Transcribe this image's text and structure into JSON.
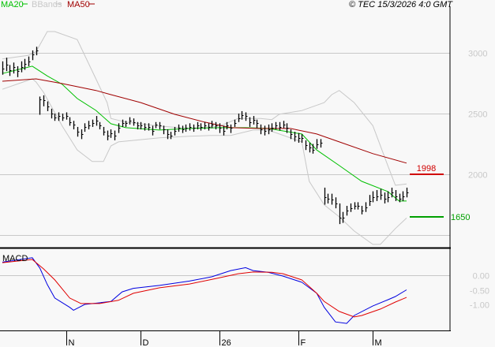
{
  "header": {
    "legend": [
      {
        "label": "MA20",
        "color": "#00c000"
      },
      {
        "label": "BBands",
        "color": "#c8c8c8"
      },
      {
        "label": "MA50",
        "color": "#a00000"
      }
    ],
    "copyright": "© TEC 15/3/2026 4:0 GMT"
  },
  "chart_data": [
    {
      "type": "ohlc",
      "panel": "price",
      "ylim": [
        1380,
        3300
      ],
      "yticks": [
        1500,
        2000,
        2500,
        3000
      ],
      "ytick_labels": [
        "",
        "2000",
        "2500",
        "3000"
      ],
      "grid": true,
      "dates": [
        "2025-10-09",
        "2025-10-10",
        "2025-10-13",
        "2025-10-14",
        "2025-10-15",
        "2025-10-16",
        "2025-10-17",
        "2025-10-20",
        "2025-10-21",
        "2025-10-22",
        "2025-10-23",
        "2025-10-24",
        "2025-10-27",
        "2025-10-28",
        "2025-10-29",
        "2025-10-30",
        "2025-10-31",
        "2025-11-03",
        "2025-11-04",
        "2025-11-05",
        "2025-11-06",
        "2025-11-07",
        "2025-11-10",
        "2025-11-11",
        "2025-11-12",
        "2025-11-13",
        "2025-11-14",
        "2025-11-17",
        "2025-11-18",
        "2025-11-19",
        "2025-11-20",
        "2025-11-21",
        "2025-11-24",
        "2025-11-25",
        "2025-11-26",
        "2025-11-27",
        "2025-11-28",
        "2025-12-01",
        "2025-12-02",
        "2025-12-03",
        "2025-12-04",
        "2025-12-05",
        "2025-12-08",
        "2025-12-09",
        "2025-12-10",
        "2025-12-11",
        "2025-12-12",
        "2025-12-15",
        "2025-12-16",
        "2025-12-17",
        "2025-12-18",
        "2025-12-19",
        "2025-12-22",
        "2025-12-23",
        "2025-12-24",
        "2025-12-29",
        "2025-12-30",
        "2025-12-31",
        "2026-01-02",
        "2026-01-05",
        "2026-01-06",
        "2026-01-07",
        "2026-01-08",
        "2026-01-09",
        "2026-01-12",
        "2026-01-13",
        "2026-01-14",
        "2026-01-15",
        "2026-01-16",
        "2026-01-19",
        "2026-01-20",
        "2026-01-21",
        "2026-01-22",
        "2026-01-23",
        "2026-01-26",
        "2026-01-27",
        "2026-01-28",
        "2026-01-29",
        "2026-01-30",
        "2026-02-02",
        "2026-02-03",
        "2026-02-04",
        "2026-02-05",
        "2026-02-06",
        "2026-02-09",
        "2026-02-10",
        "2026-02-11",
        "2026-02-12",
        "2026-02-13",
        "2026-02-16",
        "2026-02-17",
        "2026-02-18",
        "2026-02-19",
        "2026-02-20",
        "2026-02-23",
        "2026-02-24",
        "2026-02-25",
        "2026-02-26",
        "2026-02-27",
        "2026-03-02",
        "2026-03-03",
        "2026-03-04",
        "2026-03-05",
        "2026-03-06",
        "2026-03-09",
        "2026-03-10",
        "2026-03-11",
        "2026-03-12",
        "2026-03-13"
      ],
      "close": [
        2870,
        2900,
        2860,
        2880,
        2850,
        2880,
        2910,
        2930,
        2990,
        3020,
        2620,
        2610,
        2560,
        2500,
        2470,
        2480,
        2470,
        2480,
        2430,
        2410,
        2350,
        2330,
        2390,
        2400,
        2420,
        2440,
        2400,
        2350,
        2320,
        2340,
        2320,
        2380,
        2420,
        2420,
        2440,
        2430,
        2400,
        2400,
        2390,
        2390,
        2360,
        2410,
        2400,
        2370,
        2330,
        2320,
        2360,
        2380,
        2370,
        2380,
        2390,
        2380,
        2400,
        2390,
        2400,
        2390,
        2410,
        2400,
        2380,
        2360,
        2400,
        2380,
        2420,
        2460,
        2490,
        2480,
        2430,
        2450,
        2420,
        2370,
        2360,
        2370,
        2380,
        2400,
        2390,
        2410,
        2380,
        2330,
        2310,
        2300,
        2300,
        2240,
        2220,
        2200,
        2250,
        2260,
        1810,
        1800,
        1790,
        1760,
        1640,
        1640,
        1700,
        1720,
        1740,
        1740,
        1700,
        1730,
        1780,
        1810,
        1820,
        1830,
        1800,
        1810,
        1850,
        1820,
        1800,
        1820,
        1850
      ],
      "high": [
        2930,
        2960,
        2900,
        2920,
        2890,
        2930,
        2950,
        2970,
        3020,
        3050,
        2640,
        2650,
        2600,
        2540,
        2500,
        2510,
        2500,
        2510,
        2470,
        2440,
        2390,
        2370,
        2420,
        2440,
        2450,
        2480,
        2430,
        2390,
        2360,
        2370,
        2360,
        2420,
        2450,
        2440,
        2470,
        2460,
        2430,
        2430,
        2420,
        2420,
        2400,
        2430,
        2430,
        2400,
        2370,
        2350,
        2390,
        2410,
        2400,
        2410,
        2420,
        2410,
        2430,
        2420,
        2430,
        2420,
        2440,
        2430,
        2420,
        2400,
        2430,
        2410,
        2450,
        2500,
        2520,
        2510,
        2470,
        2480,
        2450,
        2410,
        2400,
        2410,
        2420,
        2430,
        2430,
        2440,
        2420,
        2370,
        2350,
        2340,
        2330,
        2280,
        2260,
        2250,
        2290,
        2290,
        1890,
        1840,
        1840,
        1810,
        1760,
        1690,
        1740,
        1760,
        1770,
        1770,
        1740,
        1770,
        1830,
        1860,
        1870,
        1880,
        1850,
        1860,
        1890,
        1870,
        1840,
        1860,
        1890
      ],
      "low": [
        2820,
        2850,
        2810,
        2830,
        2800,
        2840,
        2860,
        2890,
        2940,
        2980,
        2490,
        2560,
        2520,
        2460,
        2440,
        2440,
        2440,
        2450,
        2400,
        2370,
        2310,
        2290,
        2350,
        2370,
        2390,
        2400,
        2370,
        2320,
        2280,
        2300,
        2280,
        2340,
        2390,
        2390,
        2410,
        2400,
        2370,
        2370,
        2360,
        2360,
        2320,
        2380,
        2370,
        2330,
        2290,
        2290,
        2320,
        2350,
        2340,
        2350,
        2360,
        2350,
        2370,
        2360,
        2370,
        2360,
        2380,
        2370,
        2340,
        2320,
        2370,
        2340,
        2390,
        2430,
        2450,
        2440,
        2390,
        2410,
        2380,
        2330,
        2320,
        2330,
        2350,
        2370,
        2360,
        2380,
        2340,
        2290,
        2270,
        2260,
        2260,
        2200,
        2180,
        2170,
        2210,
        2220,
        1750,
        1760,
        1750,
        1720,
        1590,
        1600,
        1660,
        1690,
        1710,
        1710,
        1670,
        1690,
        1740,
        1770,
        1780,
        1790,
        1760,
        1770,
        1810,
        1780,
        1770,
        1780,
        1810
      ]
    },
    {
      "type": "line",
      "panel": "price",
      "series": [
        {
          "name": "MA20",
          "color": "#00c000",
          "points": [
            [
              "2025-10-09",
              2830
            ],
            [
              "2025-10-21",
              2890
            ],
            [
              "2025-10-27",
              2810
            ],
            [
              "2025-10-31",
              2740
            ],
            [
              "2025-11-06",
              2624
            ],
            [
              "2025-11-13",
              2526
            ],
            [
              "2025-11-19",
              2416
            ],
            [
              "2025-11-25",
              2384
            ],
            [
              "2025-12-08",
              2364
            ],
            [
              "2025-12-18",
              2377
            ],
            [
              "2026-01-02",
              2384
            ],
            [
              "2026-01-13",
              2384
            ],
            [
              "2026-01-21",
              2377
            ],
            [
              "2026-02-03",
              2332
            ],
            [
              "2026-02-09",
              2200
            ],
            [
              "2026-02-17",
              2072
            ],
            [
              "2026-02-25",
              1942
            ],
            [
              "2026-03-06",
              1858
            ],
            [
              "2026-03-11",
              1780
            ],
            [
              "2026-03-13",
              1780
            ]
          ]
        },
        {
          "name": "BBands",
          "color": "#c8c8c8",
          "points": [
            [
              "2025-10-09",
              2950
            ],
            [
              "2025-10-20",
              2980
            ],
            [
              "2025-10-22",
              3010
            ],
            [
              "2025-10-27",
              3175
            ],
            [
              "2025-10-29",
              3175
            ],
            [
              "2025-11-06",
              3110
            ],
            [
              "2025-11-13",
              2786
            ],
            [
              "2025-11-18",
              2590
            ],
            [
              "2025-11-19",
              2460
            ],
            [
              "2025-11-25",
              2430
            ],
            [
              "2025-12-08",
              2397
            ],
            [
              "2025-12-18",
              2377
            ],
            [
              "2026-01-02",
              2397
            ],
            [
              "2026-01-09",
              2460
            ],
            [
              "2026-01-19",
              2460
            ],
            [
              "2026-01-22",
              2450
            ],
            [
              "2026-01-26",
              2494
            ],
            [
              "2026-02-03",
              2525
            ],
            [
              "2026-02-11",
              2590
            ],
            [
              "2026-02-13",
              2656
            ],
            [
              "2026-02-17",
              2690
            ],
            [
              "2026-02-23",
              2590
            ],
            [
              "2026-03-02",
              2400
            ],
            [
              "2026-03-06",
              2070
            ],
            [
              "2026-03-10",
              1910
            ],
            [
              "2026-03-13",
              1920
            ]
          ]
        },
        {
          "name": "BBands-lower",
          "color": "#c8c8c8",
          "points": [
            [
              "2025-10-09",
              2700
            ],
            [
              "2025-10-21",
              2786
            ],
            [
              "2025-10-22",
              2760
            ],
            [
              "2025-10-24",
              2675
            ],
            [
              "2025-10-31",
              2396
            ],
            [
              "2025-11-06",
              2200
            ],
            [
              "2025-11-12",
              2105
            ],
            [
              "2025-11-17",
              2105
            ],
            [
              "2025-11-19",
              2234
            ],
            [
              "2025-11-21",
              2267
            ],
            [
              "2025-12-08",
              2300
            ],
            [
              "2025-12-18",
              2313
            ],
            [
              "2025-12-30",
              2320
            ],
            [
              "2026-01-07",
              2320
            ],
            [
              "2026-01-15",
              2364
            ],
            [
              "2026-01-21",
              2364
            ],
            [
              "2026-02-03",
              2267
            ],
            [
              "2026-02-05",
              1942
            ],
            [
              "2026-02-11",
              1748
            ],
            [
              "2026-02-17",
              1650
            ],
            [
              "2026-02-23",
              1533
            ],
            [
              "2026-03-02",
              1423
            ],
            [
              "2026-03-04",
              1423
            ],
            [
              "2026-03-10",
              1553
            ],
            [
              "2026-03-13",
              1640
            ]
          ]
        },
        {
          "name": "MA50",
          "color": "#a00000",
          "points": [
            [
              "2025-10-09",
              2766
            ],
            [
              "2025-10-22",
              2786
            ],
            [
              "2025-10-31",
              2747
            ],
            [
              "2025-11-13",
              2690
            ],
            [
              "2025-11-19",
              2656
            ],
            [
              "2025-12-01",
              2590
            ],
            [
              "2025-12-12",
              2494
            ],
            [
              "2025-12-24",
              2430
            ],
            [
              "2026-01-07",
              2384
            ],
            [
              "2026-01-19",
              2377
            ],
            [
              "2026-01-29",
              2377
            ],
            [
              "2026-02-09",
              2332
            ],
            [
              "2026-02-17",
              2267
            ],
            [
              "2026-03-02",
              2170
            ],
            [
              "2026-03-13",
              2092
            ]
          ]
        }
      ]
    },
    {
      "type": "line",
      "panel": "macd",
      "title": "MACD",
      "ylim": [
        -1.95,
        0.8
      ],
      "yticks": [
        0,
        -0.5,
        -1.0
      ],
      "ytick_labels": [
        "0.00",
        "-0.50",
        "-1.00"
      ],
      "series": [
        {
          "name": "MACD",
          "color": "#0000e0",
          "points": [
            [
              "2025-10-09",
              0.45
            ],
            [
              "2025-10-21",
              0.6
            ],
            [
              "2025-10-23",
              0.25
            ],
            [
              "2025-10-27",
              -0.32
            ],
            [
              "2025-10-29",
              -0.78
            ],
            [
              "2025-11-04",
              -1.1
            ],
            [
              "2025-11-05",
              -1.2
            ],
            [
              "2025-11-10",
              -1.0
            ],
            [
              "2025-11-19",
              -0.9
            ],
            [
              "2025-11-24",
              -0.57
            ],
            [
              "2025-11-27",
              -0.45
            ],
            [
              "2025-12-08",
              -0.35
            ],
            [
              "2025-12-18",
              -0.2
            ],
            [
              "2025-12-30",
              -0.05
            ],
            [
              "2026-01-07",
              0.16
            ],
            [
              "2026-01-13",
              0.26
            ],
            [
              "2026-01-15",
              0.16
            ],
            [
              "2026-01-21",
              0.1
            ],
            [
              "2026-01-27",
              -0.03
            ],
            [
              "2026-02-03",
              -0.24
            ],
            [
              "2026-02-09",
              -0.62
            ],
            [
              "2026-02-11",
              -1.1
            ],
            [
              "2026-02-16",
              -1.6
            ],
            [
              "2026-02-19",
              -1.65
            ],
            [
              "2026-02-23",
              -1.38
            ],
            [
              "2026-03-02",
              -1.05
            ],
            [
              "2026-03-06",
              -0.84
            ],
            [
              "2026-03-10",
              -0.73
            ],
            [
              "2026-03-13",
              -0.5
            ]
          ]
        },
        {
          "name": "Signal",
          "color": "#e00000",
          "points": [
            [
              "2025-10-09",
              0.43
            ],
            [
              "2025-10-21",
              0.54
            ],
            [
              "2025-10-24",
              0.22
            ],
            [
              "2025-10-29",
              -0.16
            ],
            [
              "2025-11-04",
              -0.78
            ],
            [
              "2025-11-07",
              -0.97
            ],
            [
              "2025-11-14",
              -0.97
            ],
            [
              "2025-11-21",
              -0.86
            ],
            [
              "2025-11-27",
              -0.62
            ],
            [
              "2025-12-08",
              -0.43
            ],
            [
              "2025-12-18",
              -0.3
            ],
            [
              "2025-12-30",
              -0.14
            ],
            [
              "2026-01-09",
              0.05
            ],
            [
              "2026-01-15",
              0.11
            ],
            [
              "2026-01-22",
              0.1
            ],
            [
              "2026-01-27",
              0.05
            ],
            [
              "2026-02-03",
              -0.16
            ],
            [
              "2026-02-09",
              -0.62
            ],
            [
              "2026-02-11",
              -0.9
            ],
            [
              "2026-02-17",
              -1.24
            ],
            [
              "2026-02-23",
              -1.43
            ],
            [
              "2026-02-25",
              -1.38
            ],
            [
              "2026-03-04",
              -1.16
            ],
            [
              "2026-03-10",
              -0.92
            ],
            [
              "2026-03-13",
              -0.76
            ]
          ]
        }
      ]
    }
  ],
  "markers": [
    {
      "label": "1998",
      "value": 1998,
      "color": "#d00000"
    },
    {
      "label": "1650",
      "value": 1650,
      "color": "#00a000"
    }
  ],
  "xaxis": {
    "month_labels": [
      "N",
      "D",
      "26",
      "F",
      "M"
    ]
  }
}
